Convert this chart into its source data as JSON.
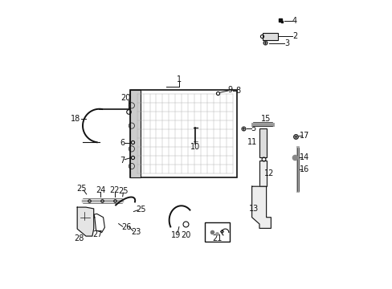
{
  "background_color": "#ffffff",
  "figsize": [
    4.89,
    3.6
  ],
  "dpi": 100,
  "black": "#111111",
  "gray": "#888888",
  "lgray": "#cccccc",
  "fs": 7
}
